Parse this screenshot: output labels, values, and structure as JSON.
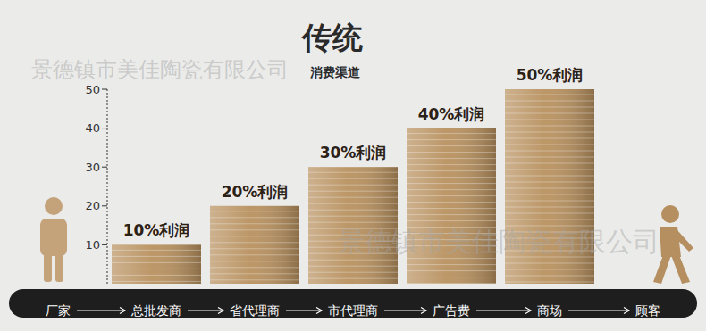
{
  "chart_data": {
    "type": "bar",
    "title": "传统",
    "subtitle": "消费渠道",
    "categories": [
      "厂家",
      "总批发商",
      "省代理商",
      "市代理商",
      "广告费",
      "商场",
      "顾客"
    ],
    "values": [
      null,
      10,
      20,
      30,
      40,
      50,
      null
    ],
    "value_labels": [
      null,
      "10%利润",
      "20%利润",
      "30%利润",
      "40%利润",
      "50%利润",
      null
    ],
    "data_labels": true,
    "color": "#b8915f",
    "ylim": [
      0,
      50
    ],
    "yticks": [
      10,
      20,
      30,
      40,
      50
    ],
    "grid": false,
    "annotations": [
      "景德镇市美佳陶瓷有限公司",
      "景德镇市美佳陶瓷有限公司"
    ]
  }
}
